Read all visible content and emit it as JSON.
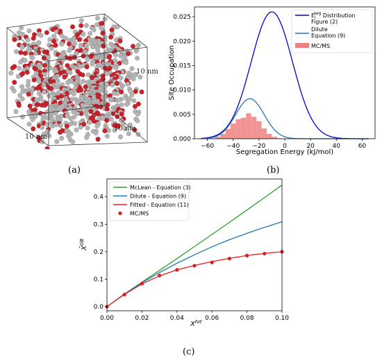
{
  "captions": {
    "a": "(a)",
    "b": "(b)",
    "c": "(c)"
  },
  "panel_a": {
    "edge_labels": {
      "right": "10 nm",
      "bottom_right": "10 nm",
      "bottom_left": "10 nm"
    },
    "atom_colors": {
      "matrix": "#b4b4b4",
      "solute": "#c8222a"
    }
  },
  "chart_data": [
    {
      "type": "line",
      "panel": "b",
      "xlabel": "Segregation Energy (kJ/mol)",
      "ylabel": "Site Occupation",
      "xlim": [
        -70,
        70
      ],
      "ylim": [
        0,
        0.027
      ],
      "xticks": [
        -60,
        -40,
        -20,
        0,
        20,
        40,
        60
      ],
      "yticks": [
        0.0,
        0.005,
        0.01,
        0.015,
        0.02,
        0.025
      ],
      "ytick_labels": [
        "0.000",
        "0.005",
        "0.010",
        "0.015",
        "0.020",
        "0.025"
      ],
      "xtick_labels": [
        "−60",
        "−40",
        "−20",
        "0",
        "20",
        "40",
        "60"
      ],
      "grid": false,
      "legend_position": "top-right",
      "legend": [
        {
          "label": "E_i^seg Distribution",
          "label_main": "E",
          "label_sub": "i",
          "label_sup": "seg",
          "label_rest": " Distribution",
          "label2": "Figure (2)",
          "color": "#0000cd",
          "kind": "line"
        },
        {
          "label": "Dilute",
          "label2": "Equation (9)",
          "color": "#1f77b4",
          "kind": "line"
        },
        {
          "label": "MC/MS",
          "color": "#f08080",
          "kind": "patch"
        }
      ],
      "series": [
        {
          "name": "E_i^seg Distribution Figure (2)",
          "kind": "gaussian",
          "mean": -10,
          "sigma": 16,
          "peak": 0.026,
          "color": "#0000cd"
        },
        {
          "name": "Dilute Equation (9)",
          "kind": "gaussian",
          "mean": -27,
          "sigma": 11,
          "peak": 0.0082,
          "color": "#1f77b4"
        },
        {
          "name": "MC/MS",
          "kind": "histogram",
          "color": "#f08080",
          "bin_width": 4,
          "bins": [
            {
              "x": -52,
              "y": 0.0004
            },
            {
              "x": -48,
              "y": 0.001
            },
            {
              "x": -44,
              "y": 0.002
            },
            {
              "x": -40,
              "y": 0.0031
            },
            {
              "x": -36,
              "y": 0.004
            },
            {
              "x": -32,
              "y": 0.0043
            },
            {
              "x": -28,
              "y": 0.0052
            },
            {
              "x": -24,
              "y": 0.0045
            },
            {
              "x": -20,
              "y": 0.0036
            },
            {
              "x": -16,
              "y": 0.0021
            },
            {
              "x": -12,
              "y": 0.001
            },
            {
              "x": -8,
              "y": 0.0004
            },
            {
              "x": -4,
              "y": 0.0001
            }
          ]
        }
      ]
    },
    {
      "type": "line",
      "panel": "c",
      "xlabel": "X^tot",
      "xlabel_main": "X",
      "xlabel_sup": "tot",
      "ylabel": "X̄^GB",
      "ylabel_main": "X̄",
      "ylabel_sup": "GB",
      "xlim": [
        0,
        0.1
      ],
      "ylim": [
        -0.015,
        0.465
      ],
      "xticks": [
        0,
        0.02,
        0.04,
        0.06,
        0.08,
        0.1
      ],
      "xtick_labels": [
        "0.00",
        "0.02",
        "0.04",
        "0.06",
        "0.08",
        "0.10"
      ],
      "yticks": [
        0,
        0.1,
        0.2,
        0.3,
        0.4
      ],
      "ytick_labels": [
        "0.0",
        "0.1",
        "0.2",
        "0.3",
        "0.4"
      ],
      "grid": false,
      "legend_position": "top-left",
      "legend": [
        {
          "label": "McLean - Equation (3)",
          "color": "#2ca02c",
          "kind": "line"
        },
        {
          "label": "Dilute - Equation (9)",
          "color": "#1f77b4",
          "kind": "line"
        },
        {
          "label": "Fitted - Equation (11)",
          "color": "#e31a1c",
          "kind": "line"
        },
        {
          "label": "MC/MS",
          "color": "#e31a1c",
          "kind": "marker"
        }
      ],
      "series": [
        {
          "name": "McLean - Equation (3)",
          "color": "#2ca02c",
          "kind": "line",
          "x": [
            0,
            0.01,
            0.02,
            0.03,
            0.04,
            0.05,
            0.06,
            0.07,
            0.08,
            0.09,
            0.1
          ],
          "y": [
            0,
            0.046,
            0.089,
            0.132,
            0.175,
            0.219,
            0.263,
            0.307,
            0.352,
            0.397,
            0.443
          ]
        },
        {
          "name": "Dilute - Equation (9)",
          "color": "#1f77b4",
          "kind": "line",
          "x": [
            0,
            0.01,
            0.02,
            0.03,
            0.04,
            0.05,
            0.06,
            0.07,
            0.08,
            0.09,
            0.1
          ],
          "y": [
            0,
            0.046,
            0.087,
            0.124,
            0.158,
            0.189,
            0.218,
            0.244,
            0.267,
            0.289,
            0.309
          ]
        },
        {
          "name": "Fitted - Equation (11)",
          "color": "#e31a1c",
          "kind": "line",
          "x": [
            0,
            0.01,
            0.02,
            0.03,
            0.04,
            0.05,
            0.06,
            0.07,
            0.08,
            0.09,
            0.1
          ],
          "y": [
            0,
            0.045,
            0.083,
            0.112,
            0.134,
            0.15,
            0.164,
            0.176,
            0.186,
            0.194,
            0.2
          ]
        },
        {
          "name": "MC/MS",
          "color": "#e31a1c",
          "kind": "scatter",
          "x": [
            0,
            0.01,
            0.02,
            0.03,
            0.04,
            0.05,
            0.06,
            0.07,
            0.08,
            0.09,
            0.1
          ],
          "y": [
            0,
            0.044,
            0.084,
            0.113,
            0.134,
            0.149,
            0.161,
            0.175,
            0.186,
            0.193,
            0.2
          ]
        }
      ]
    }
  ]
}
